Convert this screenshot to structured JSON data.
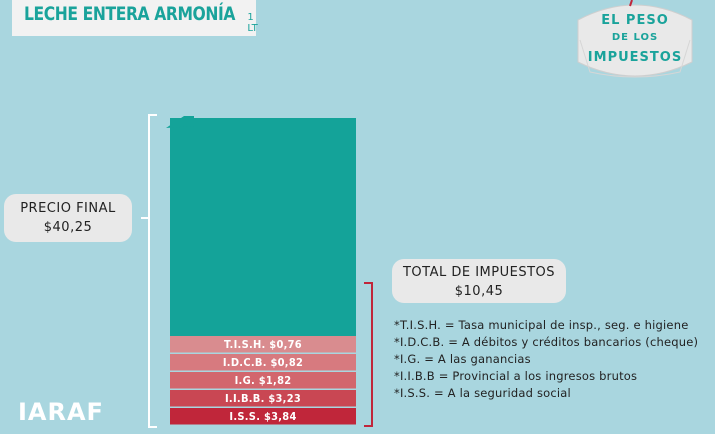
{
  "header": {
    "title": "LECHE ENTERA ARMONÍA",
    "title_unit": "1 LT"
  },
  "badge": {
    "line1": "EL PESO",
    "line2": "DE LOS",
    "line3": "IMPUESTOS"
  },
  "price_bubble": {
    "label": "PRECIO FINAL",
    "value": "$40,25"
  },
  "tax_bubble": {
    "label": "TOTAL DE IMPUESTOS",
    "value": "$10,45"
  },
  "chart_data": {
    "type": "bar",
    "title": "LECHE ENTERA ARMONÍA 1 LT",
    "total": 40.25,
    "taxes_total": 10.45,
    "segments": [
      {
        "label": "T.I.S.H. $0,76",
        "value": 0.76,
        "color": "#d98c8f"
      },
      {
        "label": "I.D.C.B. $0,82",
        "value": 0.82,
        "color": "#d77a7f"
      },
      {
        "label": "I.G. $1,82",
        "value": 1.82,
        "color": "#d2666d"
      },
      {
        "label": "I.I.B.B. $3,23",
        "value": 3.23,
        "color": "#c94753"
      },
      {
        "label": "I.S.S. $3,84",
        "value": 3.84,
        "color": "#c0263a"
      }
    ],
    "base_color": "#14a399"
  },
  "notes": [
    "*T.I.S.H. = Tasa municipal de insp., seg. e higiene",
    "*I.D.C.B. = A débitos y créditos bancarios (cheque)",
    "*I.G. = A las ganancias",
    "*I.I.B.B = Provincial a los ingresos brutos",
    "*I.S.S. = A la seguridad social"
  ],
  "logo": {
    "text": "IARAF"
  },
  "colors": {
    "background": "#a9d6df",
    "accent": "#1aa39b"
  }
}
